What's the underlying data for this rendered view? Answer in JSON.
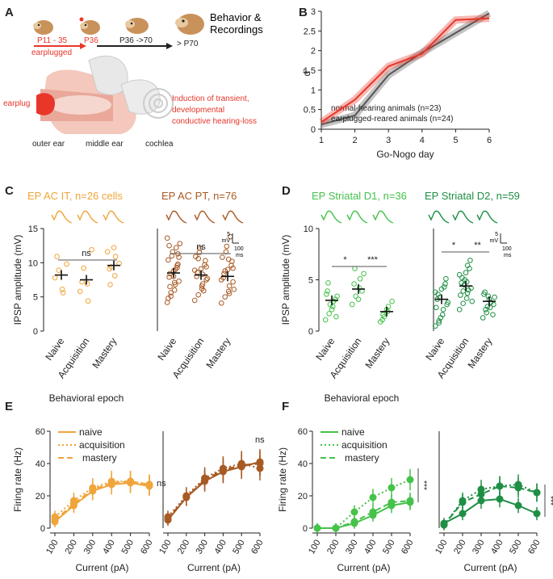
{
  "colors": {
    "orange": "#f0a53a",
    "brown": "#a85a24",
    "green_light": "#45c24a",
    "green_dark": "#1f8f45",
    "red": "#e8362a",
    "gray": "#666666"
  },
  "panel_labels": {
    "a": "A",
    "b": "B",
    "c": "C",
    "d": "D",
    "e": "E",
    "f": "F"
  },
  "panelA": {
    "ages": [
      "P11 - 35",
      "P36",
      "P36 ->70",
      "> P70"
    ],
    "earplugged": "earplugged",
    "behavior_lines": [
      "Behavior &",
      "Recordings"
    ],
    "earplug": "earplug",
    "induction_lines": [
      "Induction of transient,",
      "developmental",
      "conductive hearing-loss"
    ],
    "ear_labels": [
      "outer ear",
      "middle ear",
      "cochlea"
    ]
  },
  "chart_data": [
    {
      "id": "B",
      "type": "line",
      "xlabel": "Go-Nogo day",
      "ylabel": "d'",
      "xlim": [
        1,
        6
      ],
      "ylim": [
        0,
        3
      ],
      "xticks": [
        1,
        2,
        3,
        4,
        5,
        6
      ],
      "yticks": [
        0,
        0.5,
        1,
        1.5,
        2,
        2.5,
        3
      ],
      "series": [
        {
          "name": "normal-hearing animals (n=23)",
          "color": "#555555",
          "x": [
            1,
            2,
            3,
            4,
            5,
            6
          ],
          "values": [
            0.12,
            0.35,
            1.38,
            1.95,
            2.45,
            2.95
          ]
        },
        {
          "name": "earplugged-reared animals (n=24)",
          "color": "#e8362a",
          "x": [
            1,
            2,
            3,
            4,
            5,
            6
          ],
          "values": [
            0.18,
            0.75,
            1.6,
            1.92,
            2.78,
            2.82
          ]
        }
      ]
    },
    {
      "id": "C1",
      "type": "scatter",
      "title": "EP AC IT, n=26 cells",
      "ylabel": "IPSP amplitude (mV)",
      "xlabel": "Behavioral epoch",
      "categories": [
        "Naive",
        "Acquisition",
        "Mastery"
      ],
      "ylim": [
        0,
        15
      ],
      "yticks": [
        0,
        5,
        10,
        15
      ],
      "sig": "ns",
      "means": [
        8.2,
        7.5,
        9.6
      ],
      "points": [
        [
          7.8,
          8.9,
          6.1,
          5.6,
          9.8,
          10.9
        ],
        [
          5.8,
          9.2,
          6.9,
          4.4,
          11.9,
          7.2
        ],
        [
          11.6,
          9.4,
          8.1,
          10.9,
          9.9,
          9.1,
          6.8,
          12.2
        ]
      ]
    },
    {
      "id": "C2",
      "type": "scatter",
      "title": "EP AC PT, n=76",
      "categories": [
        "Naive",
        "Acquisition",
        "Mastery"
      ],
      "ylim": [
        0,
        15
      ],
      "sig": "ns",
      "means": [
        8.5,
        8.2,
        8.0
      ],
      "points": [
        [
          4.2,
          5.1,
          6,
          6.8,
          7.3,
          7.9,
          8.4,
          8.8,
          9.3,
          9.8,
          10.4,
          11,
          11.6,
          12.2,
          12.8,
          13.6,
          5.6,
          7.1,
          9,
          10.8,
          12.5,
          6.5,
          8,
          9.6,
          11.3,
          4.8
        ],
        [
          4.5,
          5.3,
          6.2,
          6.9,
          7.5,
          8,
          8.6,
          9.1,
          9.7,
          10.3,
          10.9,
          11.5,
          12.1,
          5.9,
          7.7,
          8.9,
          10.6,
          6.6,
          8.3,
          9.4
        ],
        [
          4.1,
          5,
          5.8,
          6.6,
          7.2,
          7.8,
          8.4,
          9,
          9.6,
          10.2,
          10.8,
          11.6,
          12.4,
          13.8,
          6.1,
          7.5,
          8.8,
          10.5,
          5.5,
          9.2
        ]
      ]
    },
    {
      "id": "D1",
      "type": "scatter",
      "title": "EP Striatal D1, n=36",
      "ylabel": "IPSP amplitude (mV)",
      "xlabel": "Behavioral epoch",
      "categories": [
        "Naive",
        "Acquisition",
        "Mastery"
      ],
      "ylim": [
        0,
        10
      ],
      "yticks": [
        0,
        5,
        10
      ],
      "sig_pairs": [
        "*",
        "***"
      ],
      "means": [
        3.0,
        4.1,
        1.9
      ],
      "points": [
        [
          1.1,
          1.7,
          2.4,
          2.9,
          3.4,
          3.9,
          4.7,
          2.1,
          3.1,
          1.4,
          3.6,
          2.6
        ],
        [
          2.6,
          3.4,
          4.2,
          5.1,
          5.6,
          4.6,
          6.1,
          3.1,
          3.9
        ],
        [
          0.9,
          1.4,
          1.9,
          2.4,
          2.9,
          1.1,
          1.6,
          2.1
        ]
      ]
    },
    {
      "id": "D2",
      "type": "scatter",
      "title": "EP Striatal D2, n=59",
      "categories": [
        "Naive",
        "Acquisition",
        "Mastery"
      ],
      "ylim": [
        0,
        10
      ],
      "sig_pairs": [
        "*",
        "**"
      ],
      "means": [
        3.1,
        4.4,
        2.9
      ],
      "points": [
        [
          0.5,
          1,
          1.6,
          2.1,
          2.6,
          3.1,
          3.6,
          4.1,
          4.6,
          5.1,
          2.3,
          3.3,
          1.3,
          4.3,
          2.8,
          3.8,
          0.8
        ],
        [
          2.1,
          2.7,
          3.2,
          3.7,
          4.2,
          4.7,
          5.2,
          5.7,
          6.1,
          6.9,
          3.5,
          4.5,
          5,
          4,
          2.9,
          5.5,
          3.9,
          4.8,
          6.4
        ],
        [
          1.3,
          1.8,
          2.3,
          2.8,
          3.3,
          3.8,
          2.1,
          3.1,
          1.6,
          2.6,
          3.6,
          2.4,
          3.4
        ]
      ]
    },
    {
      "id": "E1",
      "type": "line",
      "xlabel": "Current (pA)",
      "ylabel": "Firing rate (Hz)",
      "xlim": [
        100,
        600
      ],
      "ylim": [
        0,
        60
      ],
      "xticks": [
        100,
        200,
        300,
        400,
        500,
        600
      ],
      "yticks": [
        0,
        20,
        40,
        60
      ],
      "sig": "ns",
      "series": [
        {
          "name": "naive",
          "style": "solid",
          "values": [
            4,
            14,
            23,
            27,
            28,
            26
          ]
        },
        {
          "name": "acquisition",
          "style": "dotted",
          "values": [
            7,
            17,
            25,
            29,
            29,
            27
          ]
        },
        {
          "name": "mastery",
          "style": "dashed",
          "values": [
            5,
            15,
            24,
            28,
            29,
            27
          ]
        }
      ]
    },
    {
      "id": "E2",
      "type": "line",
      "xlabel": "Current (pA)",
      "xlim": [
        100,
        600
      ],
      "ylim": [
        0,
        60
      ],
      "sig": "ns",
      "series": [
        {
          "name": "naive",
          "style": "solid",
          "values": [
            5,
            19,
            29,
            35,
            38,
            41
          ]
        },
        {
          "name": "acquisition",
          "style": "dotted",
          "values": [
            7,
            20,
            31,
            37,
            40,
            37
          ]
        },
        {
          "name": "mastery",
          "style": "dashed",
          "values": [
            6,
            19,
            30,
            36,
            39,
            40
          ]
        }
      ]
    },
    {
      "id": "F1",
      "type": "line",
      "xlabel": "Current (pA)",
      "ylabel": "Firing rate (Hz)",
      "xlim": [
        100,
        600
      ],
      "ylim": [
        0,
        60
      ],
      "xticks": [
        100,
        200,
        300,
        400,
        500,
        600
      ],
      "yticks": [
        0,
        20,
        40,
        60
      ],
      "sig": "***",
      "series": [
        {
          "name": "naive",
          "style": "solid",
          "values": [
            0,
            0,
            3,
            8,
            14,
            16
          ]
        },
        {
          "name": "acquisition",
          "style": "dotted",
          "values": [
            0,
            0,
            10,
            19,
            25,
            30
          ]
        },
        {
          "name": "mastery",
          "style": "dashed",
          "values": [
            0,
            0,
            4,
            10,
            16,
            17
          ]
        }
      ]
    },
    {
      "id": "F2",
      "type": "line",
      "xlabel": "Current (pA)",
      "xlim": [
        100,
        600
      ],
      "ylim": [
        0,
        60
      ],
      "sig": "***",
      "series": [
        {
          "name": "naive",
          "style": "solid",
          "values": [
            3,
            9,
            17,
            18,
            14,
            9
          ]
        },
        {
          "name": "acquisition",
          "style": "dotted",
          "values": [
            2,
            17,
            24,
            26,
            27,
            22
          ]
        },
        {
          "name": "mastery",
          "style": "dashed",
          "values": [
            2,
            16,
            21,
            26,
            25,
            22
          ]
        }
      ]
    }
  ],
  "legends": {
    "naive": "naive",
    "acquisition": "acquisition",
    "mastery": "mastery"
  },
  "scalebar": {
    "mv": "5",
    "mv_unit": "mV",
    "ms": "100",
    "ms_unit": "ms"
  }
}
